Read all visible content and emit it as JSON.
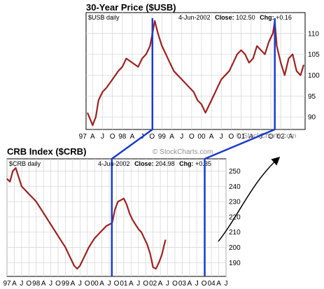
{
  "chart_data": [
    {
      "type": "line",
      "title": "30-Year Price ($USB)",
      "watermark": "© StockCharts.com",
      "inner_label": "$USB daily",
      "info": {
        "date": "4-Jun-2002",
        "close_label": "Close:",
        "close_value": "102.50",
        "chg_label": "Chg:",
        "chg_value": "+0.16"
      },
      "ylim": [
        87,
        115
      ],
      "x_start": 1997.12,
      "x_end": 2002.58,
      "y_ticks": [
        {
          "value": 90,
          "label": "90"
        },
        {
          "value": 95,
          "label": "95"
        },
        {
          "value": 100,
          "label": "100"
        },
        {
          "value": 105,
          "label": "105"
        },
        {
          "value": 110,
          "label": "110"
        }
      ],
      "x_tick_labels": [
        {
          "value": 1997.0,
          "label": "97"
        },
        {
          "value": 1997.25,
          "label": "A"
        },
        {
          "value": 1997.5,
          "label": "J"
        },
        {
          "value": 1997.75,
          "label": "O"
        },
        {
          "value": 1998.0,
          "label": "98"
        },
        {
          "value": 1998.25,
          "label": "A"
        },
        {
          "value": 1998.5,
          "label": "J"
        },
        {
          "value": 1998.75,
          "label": "O"
        },
        {
          "value": 1999.0,
          "label": "99"
        },
        {
          "value": 1999.25,
          "label": "A"
        },
        {
          "value": 1999.5,
          "label": "J"
        },
        {
          "value": 1999.75,
          "label": "O"
        },
        {
          "value": 2000.0,
          "label": "00"
        },
        {
          "value": 2000.25,
          "label": "A"
        },
        {
          "value": 2000.5,
          "label": "J"
        },
        {
          "value": 2000.75,
          "label": "O"
        },
        {
          "value": 2001.0,
          "label": "01"
        },
        {
          "value": 2001.25,
          "label": "A"
        },
        {
          "value": 2001.5,
          "label": "J"
        },
        {
          "value": 2001.75,
          "label": "O"
        },
        {
          "value": 2002.0,
          "label": "02"
        },
        {
          "value": 2002.25,
          "label": "A"
        }
      ],
      "series": [
        {
          "color": "#cc0000",
          "x": [
            1997.12,
            1997.25,
            1997.33,
            1997.4,
            1997.5,
            1997.6,
            1997.75,
            1997.9,
            1998.0,
            1998.1,
            1998.25,
            1998.4,
            1998.5,
            1998.6,
            1998.7,
            1998.76,
            1998.82,
            1998.9,
            1999.0,
            1999.1,
            1999.2,
            1999.3,
            1999.4,
            1999.5,
            1999.6,
            1999.7,
            1999.8,
            1999.9,
            2000.0,
            2000.1,
            2000.2,
            2000.3,
            2000.4,
            2000.5,
            2000.6,
            2000.7,
            2000.8,
            2000.9,
            2001.0,
            2001.1,
            2001.2,
            2001.3,
            2001.4,
            2001.5,
            2001.6,
            2001.7,
            2001.8,
            2001.85,
            2001.9,
            2002.0,
            2002.1,
            2002.2,
            2002.3,
            2002.4,
            2002.5,
            2002.58
          ],
          "y": [
            91,
            88,
            90,
            94,
            96,
            97,
            99,
            101,
            102,
            104,
            103,
            102,
            104,
            105,
            107,
            110,
            113,
            110,
            107,
            105,
            103,
            101,
            100,
            99,
            98,
            97,
            96,
            94,
            93,
            91,
            93,
            95,
            97,
            99,
            100,
            101,
            103,
            105,
            106,
            105,
            103,
            104,
            107,
            106,
            105,
            108,
            110,
            113,
            107,
            103,
            100,
            104,
            105,
            101,
            100,
            102.5
          ]
        }
      ],
      "vertical_lines": [
        {
          "x": 1998.76,
          "color": "#1a3ccc"
        },
        {
          "x": 2001.85,
          "color": "#1a3ccc"
        }
      ]
    },
    {
      "type": "line",
      "title": "CRB Index ($CRB)",
      "watermark": "© StockCharts.com",
      "inner_label": "$CRB daily",
      "info": {
        "date": "4-Jun-2002",
        "close_label": "Close:",
        "close_value": "204.98",
        "chg_label": "Chg:",
        "chg_value": "+0.35"
      },
      "ylim": [
        181,
        258
      ],
      "x_start": 1997.0,
      "x_end": 2004.5,
      "y_ticks": [
        {
          "value": 190,
          "label": "190"
        },
        {
          "value": 200,
          "label": "200"
        },
        {
          "value": 210,
          "label": "210"
        },
        {
          "value": 220,
          "label": "220"
        },
        {
          "value": 230,
          "label": "230"
        },
        {
          "value": 240,
          "label": "240"
        },
        {
          "value": 250,
          "label": "250"
        }
      ],
      "x_tick_labels": [
        {
          "value": 1997.0,
          "label": "97"
        },
        {
          "value": 1997.25,
          "label": "A"
        },
        {
          "value": 1997.5,
          "label": "J"
        },
        {
          "value": 1997.75,
          "label": "O"
        },
        {
          "value": 1998.0,
          "label": "98"
        },
        {
          "value": 1998.25,
          "label": "A"
        },
        {
          "value": 1998.5,
          "label": "J"
        },
        {
          "value": 1998.75,
          "label": "O"
        },
        {
          "value": 1999.0,
          "label": "99"
        },
        {
          "value": 1999.25,
          "label": "A"
        },
        {
          "value": 1999.5,
          "label": "J"
        },
        {
          "value": 1999.75,
          "label": "O"
        },
        {
          "value": 2000.0,
          "label": "00"
        },
        {
          "value": 2000.25,
          "label": "A"
        },
        {
          "value": 2000.5,
          "label": "J"
        },
        {
          "value": 2000.75,
          "label": "O"
        },
        {
          "value": 2001.0,
          "label": "01"
        },
        {
          "value": 2001.25,
          "label": "A"
        },
        {
          "value": 2001.5,
          "label": "J"
        },
        {
          "value": 2001.75,
          "label": "O"
        },
        {
          "value": 2002.0,
          "label": "02"
        },
        {
          "value": 2002.25,
          "label": "A"
        },
        {
          "value": 2002.5,
          "label": "J"
        },
        {
          "value": 2002.75,
          "label": "O"
        },
        {
          "value": 2003.0,
          "label": "03"
        },
        {
          "value": 2003.25,
          "label": "A"
        },
        {
          "value": 2003.5,
          "label": "J"
        },
        {
          "value": 2003.75,
          "label": "O"
        },
        {
          "value": 2004.0,
          "label": "04"
        },
        {
          "value": 2004.25,
          "label": "A"
        },
        {
          "value": 2004.5,
          "label": "J"
        }
      ],
      "series": [
        {
          "color": "#cc0000",
          "x": [
            1997.0,
            1997.1,
            1997.2,
            1997.3,
            1997.4,
            1997.5,
            1997.6,
            1997.7,
            1997.8,
            1997.9,
            1998.0,
            1998.1,
            1998.2,
            1998.3,
            1998.4,
            1998.5,
            1998.6,
            1998.7,
            1998.8,
            1998.9,
            1999.0,
            1999.1,
            1999.2,
            1999.3,
            1999.4,
            1999.5,
            1999.6,
            1999.7,
            1999.8,
            1999.9,
            2000.0,
            2000.1,
            2000.2,
            2000.3,
            2000.4,
            2000.5,
            2000.6,
            2000.7,
            2000.8,
            2000.9,
            2001.0,
            2001.1,
            2001.2,
            2001.3,
            2001.4,
            2001.5,
            2001.6,
            2001.7,
            2001.8,
            2001.9,
            2002.0,
            2002.1,
            2002.2,
            2002.3,
            2002.4,
            2002.43
          ],
          "y": [
            245,
            243,
            250,
            252,
            246,
            240,
            238,
            236,
            234,
            232,
            230,
            227,
            224,
            221,
            218,
            215,
            212,
            209,
            206,
            203,
            200,
            196,
            192,
            188,
            186,
            188,
            192,
            196,
            200,
            203,
            206,
            208,
            210,
            212,
            214,
            215,
            216,
            225,
            230,
            231,
            232,
            228,
            222,
            218,
            215,
            212,
            210,
            206,
            202,
            196,
            187,
            186,
            190,
            195,
            203,
            205
          ]
        }
      ],
      "vertical_lines": [
        {
          "x": 2000.59,
          "color": "#1a3ccc"
        },
        {
          "x": 2003.77,
          "color": "#1a3ccc"
        }
      ]
    }
  ]
}
